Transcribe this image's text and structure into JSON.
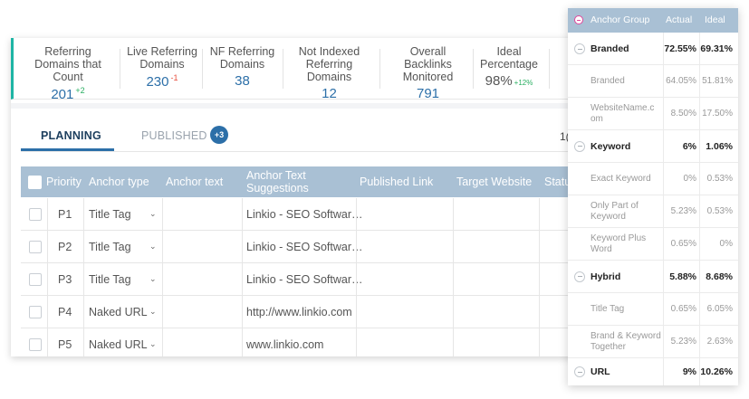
{
  "stats": [
    {
      "label": "Referring Domains that Count",
      "value": "201",
      "delta": "+2",
      "delta_type": "pos"
    },
    {
      "label": "Live Referring Domains",
      "value": "230",
      "delta": "-1",
      "delta_type": "neg"
    },
    {
      "label": "NF Referring Domains",
      "value": "38",
      "delta": "",
      "delta_type": ""
    },
    {
      "label": "Not Indexed Referring Domains",
      "value": "12",
      "delta": "",
      "delta_type": ""
    },
    {
      "label": "Overall Backlinks Monitored",
      "value": "791",
      "delta": "",
      "delta_type": ""
    },
    {
      "label": "Ideal Percentage",
      "value": "98%",
      "delta": "+12%",
      "delta_type": "pos"
    }
  ],
  "tabs": {
    "planning": "PLANNING",
    "published": "PUBLISHED",
    "published_badge": "+3"
  },
  "pager_text": "1(",
  "table": {
    "headers": {
      "priority": "Priority",
      "anchor_type": "Anchor type",
      "anchor_text": "Anchor text",
      "suggestions": "Anchor Text Suggestions",
      "published_link": "Published Link",
      "target_website": "Target Website",
      "status": "Statu"
    },
    "rows": [
      {
        "priority": "P1",
        "anchor_type": "Title Tag",
        "suggestion": "Linkio - SEO Softwar…"
      },
      {
        "priority": "P2",
        "anchor_type": "Title Tag",
        "suggestion": "Linkio - SEO Softwar…"
      },
      {
        "priority": "P3",
        "anchor_type": "Title Tag",
        "suggestion": "Linkio - SEO Softwar…"
      },
      {
        "priority": "P4",
        "anchor_type": "Naked URL",
        "suggestion": "http://www.linkio.com"
      },
      {
        "priority": "P5",
        "anchor_type": "Naked URL",
        "suggestion": "www.linkio.com"
      }
    ]
  },
  "anchor_panel": {
    "headers": {
      "group": "Anchor Group",
      "actual": "Actual",
      "ideal": "Ideal"
    },
    "accent_color": "#e0469b",
    "rows": [
      {
        "kind": "group",
        "name": "Branded",
        "actual": "72.55%",
        "ideal": "69.31%"
      },
      {
        "kind": "item",
        "name": "Branded",
        "actual": "64.05%",
        "ideal": "51.81%"
      },
      {
        "kind": "item",
        "name": "WebsiteName.com",
        "actual": "8.50%",
        "ideal": "17.50%"
      },
      {
        "kind": "group",
        "name": "Keyword",
        "actual": "6%",
        "ideal": "1.06%"
      },
      {
        "kind": "item",
        "name": "Exact Keyword",
        "actual": "0%",
        "ideal": "0.53%"
      },
      {
        "kind": "item",
        "name": "Only Part of Keyword",
        "actual": "5.23%",
        "ideal": "0.53%"
      },
      {
        "kind": "item",
        "name": "Keyword Plus Word",
        "actual": "0.65%",
        "ideal": "0%"
      },
      {
        "kind": "group",
        "name": "Hybrid",
        "actual": "5.88%",
        "ideal": "8.68%"
      },
      {
        "kind": "item",
        "name": "Title Tag",
        "actual": "0.65%",
        "ideal": "6.05%"
      },
      {
        "kind": "item",
        "name": "Brand & Keyword Together",
        "actual": "5.23%",
        "ideal": "2.63%"
      },
      {
        "kind": "group",
        "name": "URL",
        "actual": "9%",
        "ideal": "10.26%"
      }
    ]
  }
}
